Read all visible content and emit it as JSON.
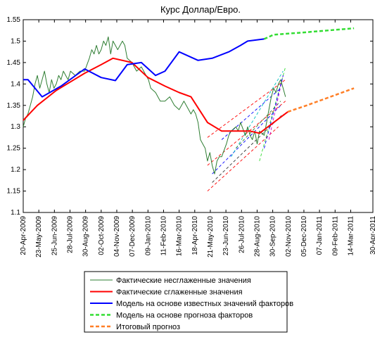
{
  "chart_data": {
    "type": "line",
    "title": "Курс Доллар/Евро.",
    "xlim": [
      0,
      740
    ],
    "ylim": [
      1.1,
      1.55
    ],
    "yticks": [
      1.1,
      1.15,
      1.2,
      1.25,
      1.3,
      1.35,
      1.4,
      1.45,
      1.5,
      1.55
    ],
    "xticks": [
      {
        "value": 0,
        "label": "20-Apr-2009"
      },
      {
        "value": 33,
        "label": "23-May-2009"
      },
      {
        "value": 66,
        "label": "25-Jun-2009"
      },
      {
        "value": 99,
        "label": "28-Jul-2009"
      },
      {
        "value": 132,
        "label": "30-Aug-2009"
      },
      {
        "value": 165,
        "label": "02-Oct-2009"
      },
      {
        "value": 198,
        "label": "04-Nov-2009"
      },
      {
        "value": 231,
        "label": "07-Dec-2009"
      },
      {
        "value": 264,
        "label": "09-Jan-2010"
      },
      {
        "value": 297,
        "label": "11-Feb-2010"
      },
      {
        "value": 330,
        "label": "16-Mar-2010"
      },
      {
        "value": 363,
        "label": "18-Apr-2010"
      },
      {
        "value": 396,
        "label": "21-May-2010"
      },
      {
        "value": 429,
        "label": "23-Jun-2010"
      },
      {
        "value": 462,
        "label": "26-Jul-2010"
      },
      {
        "value": 495,
        "label": "28-Aug-2010"
      },
      {
        "value": 528,
        "label": "30-Sep-2010"
      },
      {
        "value": 561,
        "label": "02-Nov-2010"
      },
      {
        "value": 594,
        "label": "05-Dec-2010"
      },
      {
        "value": 627,
        "label": "07-Jan-2011"
      },
      {
        "value": 660,
        "label": "09-Feb-2011"
      },
      {
        "value": 693,
        "label": "14-Mar-2011"
      },
      {
        "value": 740,
        "label": "30-Apr-2011"
      }
    ],
    "series": [
      {
        "name": "Фактические несглаженные значения",
        "color": "#2e7d32",
        "dashed": false,
        "x": [
          0,
          5,
          10,
          15,
          20,
          25,
          30,
          35,
          40,
          45,
          50,
          55,
          60,
          65,
          70,
          75,
          80,
          85,
          90,
          95,
          100,
          110,
          120,
          130,
          140,
          145,
          150,
          155,
          160,
          165,
          170,
          175,
          180,
          185,
          190,
          195,
          200,
          210,
          215,
          220,
          230,
          240,
          250,
          260,
          265,
          270,
          280,
          290,
          300,
          310,
          320,
          330,
          340,
          350,
          355,
          360,
          365,
          370,
          375,
          380,
          385,
          390,
          395,
          400,
          405,
          410,
          415,
          420,
          430,
          435,
          440,
          450,
          455,
          460,
          470,
          475,
          480,
          485,
          490,
          495,
          500,
          510,
          515,
          520,
          525,
          530,
          535,
          540,
          545,
          550,
          555
        ],
        "values": [
          1.3,
          1.32,
          1.33,
          1.35,
          1.37,
          1.4,
          1.42,
          1.39,
          1.41,
          1.43,
          1.4,
          1.38,
          1.41,
          1.39,
          1.4,
          1.42,
          1.41,
          1.43,
          1.42,
          1.41,
          1.43,
          1.42,
          1.43,
          1.43,
          1.46,
          1.48,
          1.47,
          1.49,
          1.47,
          1.48,
          1.5,
          1.49,
          1.51,
          1.47,
          1.5,
          1.49,
          1.48,
          1.5,
          1.49,
          1.46,
          1.45,
          1.43,
          1.44,
          1.42,
          1.41,
          1.39,
          1.38,
          1.36,
          1.36,
          1.37,
          1.35,
          1.34,
          1.36,
          1.34,
          1.33,
          1.34,
          1.33,
          1.31,
          1.27,
          1.26,
          1.25,
          1.22,
          1.24,
          1.21,
          1.19,
          1.22,
          1.23,
          1.23,
          1.26,
          1.28,
          1.29,
          1.3,
          1.29,
          1.31,
          1.28,
          1.3,
          1.28,
          1.27,
          1.29,
          1.26,
          1.29,
          1.28,
          1.31,
          1.34,
          1.37,
          1.39,
          1.38,
          1.4,
          1.41,
          1.39,
          1.37
        ]
      },
      {
        "name": "Фактические сглаженные значения",
        "color": "#ff0000",
        "dashed": false,
        "x": [
          0,
          30,
          70,
          100,
          130,
          165,
          190,
          230,
          264,
          300,
          330,
          355,
          390,
          420,
          450,
          480,
          500,
          530,
          560
        ],
        "values": [
          1.315,
          1.35,
          1.385,
          1.405,
          1.425,
          1.445,
          1.46,
          1.45,
          1.415,
          1.395,
          1.38,
          1.37,
          1.31,
          1.29,
          1.29,
          1.29,
          1.285,
          1.31,
          1.335
        ]
      },
      {
        "name": "Модель на основе известных значений факторов",
        "color": "#0000ff",
        "dashed": false,
        "x": [
          0,
          10,
          40,
          80,
          130,
          165,
          195,
          220,
          250,
          280,
          300,
          330,
          370,
          400,
          435,
          460,
          475,
          510
        ],
        "values": [
          1.41,
          1.41,
          1.37,
          1.395,
          1.435,
          1.415,
          1.408,
          1.445,
          1.45,
          1.42,
          1.43,
          1.475,
          1.455,
          1.46,
          1.475,
          1.49,
          1.5,
          1.505
        ]
      },
      {
        "name": "Модель на основе прогноза факторов",
        "color": "#33dd33",
        "dashed": true,
        "x": [
          510,
          530,
          590,
          700
        ],
        "values": [
          1.505,
          1.515,
          1.52,
          1.53
        ]
      },
      {
        "name": "Итоговый прогноз",
        "color": "#ff7f27",
        "dashed": true,
        "x": [
          560,
          600,
          700
        ],
        "values": [
          1.335,
          1.35,
          1.39
        ]
      }
    ],
    "trend_lines": [
      {
        "color": "#ff0000",
        "x": [
          390,
          555
        ],
        "values": [
          1.21,
          1.36
        ]
      },
      {
        "color": "#ff0000",
        "x": [
          390,
          555
        ],
        "values": [
          1.275,
          1.41
        ]
      },
      {
        "color": "#ff0000",
        "x": [
          390,
          540
        ],
        "values": [
          1.15,
          1.3
        ]
      },
      {
        "color": "#0000ff",
        "x": [
          400,
          545
        ],
        "values": [
          1.19,
          1.35
        ]
      },
      {
        "color": "#0000ff",
        "x": [
          420,
          545
        ],
        "values": [
          1.27,
          1.39
        ]
      },
      {
        "color": "#333333",
        "x": [
          400,
          550
        ],
        "values": [
          1.17,
          1.33
        ]
      },
      {
        "color": "#00bfbf",
        "x": [
          440,
          550
        ],
        "values": [
          1.23,
          1.43
        ]
      },
      {
        "color": "#33dd33",
        "x": [
          500,
          555
        ],
        "values": [
          1.22,
          1.44
        ]
      },
      {
        "color": "#2e7d32",
        "x": [
          450,
          545
        ],
        "values": [
          1.25,
          1.36
        ]
      },
      {
        "color": "#cc00cc",
        "x": [
          520,
          550
        ],
        "values": [
          1.27,
          1.42
        ]
      },
      {
        "color": "#0000ff",
        "x": [
          510,
          550
        ],
        "values": [
          1.25,
          1.42
        ]
      }
    ]
  }
}
